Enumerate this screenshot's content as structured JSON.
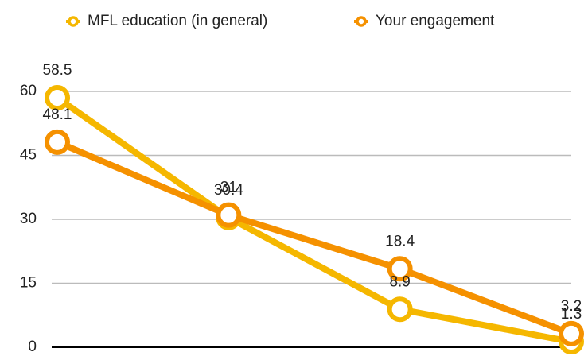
{
  "chart_data": {
    "type": "line",
    "categories": [
      null,
      null,
      null,
      null
    ],
    "series": [
      {
        "name": "MFL education (in general)",
        "color": "#f5b700",
        "values": [
          58.5,
          30.4,
          8.9,
          1.3
        ]
      },
      {
        "name": "Your engagement",
        "color": "#f59100",
        "values": [
          48.1,
          31,
          18.4,
          3.2
        ]
      }
    ],
    "ylim": [
      0,
      60
    ],
    "yticks": [
      0,
      15,
      30,
      45,
      60
    ],
    "grid": true,
    "legend": "top"
  }
}
